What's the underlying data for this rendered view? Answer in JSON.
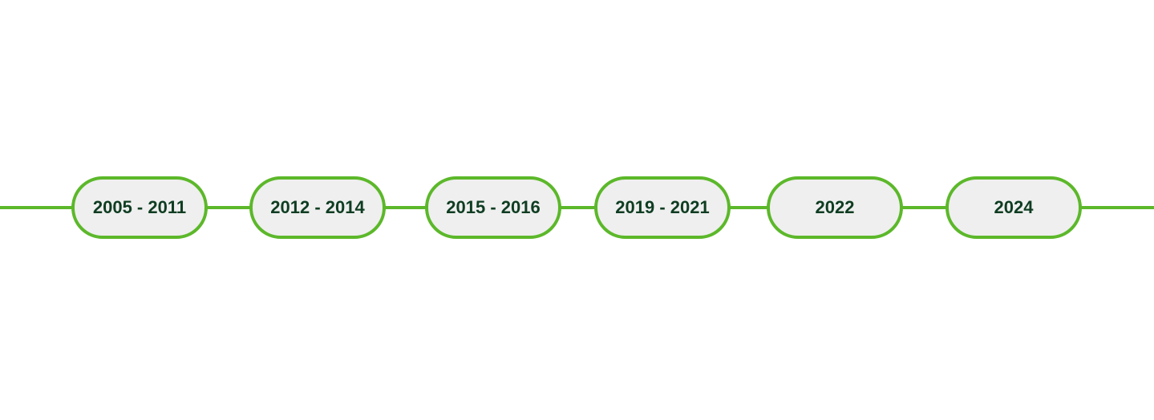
{
  "colors": {
    "line": "#5cb82a",
    "node_fill": "#efefef",
    "node_border": "#5cb82a",
    "text": "#0f3d22"
  },
  "timeline": {
    "periods": [
      {
        "label": "2005 - 2011"
      },
      {
        "label": "2012 - 2014"
      },
      {
        "label": "2015 - 2016"
      },
      {
        "label": "2019 - 2021"
      },
      {
        "label": "2022"
      },
      {
        "label": "2024"
      }
    ]
  }
}
